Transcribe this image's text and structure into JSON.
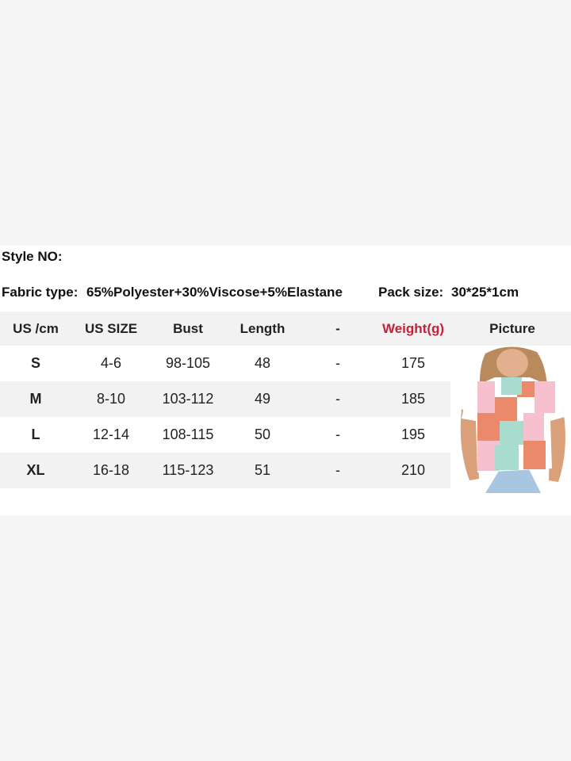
{
  "info": {
    "style_no_label": "Style NO:",
    "fabric_label": "Fabric type:",
    "fabric_value": "65%Polyester+30%Viscose+5%Elastane",
    "pack_label": "Pack size:",
    "pack_value": "30*25*1cm"
  },
  "table": {
    "headers": [
      "US /cm",
      "US SIZE",
      "Bust",
      "Length",
      "-",
      "Weight(g)",
      "Picture"
    ],
    "rows": [
      [
        "S",
        "4-6",
        "98-105",
        "48",
        "-",
        "175"
      ],
      [
        "M",
        "8-10",
        "103-112",
        "49",
        "-",
        "185"
      ],
      [
        "L",
        "12-14",
        "108-115",
        "50",
        "-",
        "195"
      ],
      [
        "XL",
        "16-18",
        "115-123",
        "51",
        "-",
        "210"
      ]
    ]
  },
  "colors": {
    "weight_header": "#c8203a",
    "row_alt": "#f2f2f2",
    "background": "#f5f5f5"
  },
  "picture": {
    "subject": "model-wearing-checkered-crop-top"
  }
}
